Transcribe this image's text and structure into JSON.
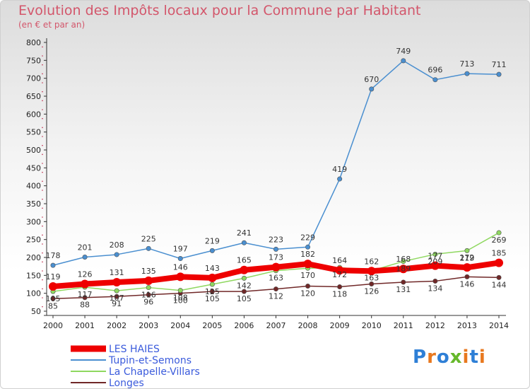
{
  "chart_data": {
    "type": "line",
    "title": "Evolution des Impôts locaux pour la Commune par Habitant",
    "subtitle": "(en € et par an)",
    "x": [
      2000,
      2001,
      2002,
      2003,
      2004,
      2005,
      2006,
      2007,
      2008,
      2009,
      2010,
      2011,
      2012,
      2013,
      2014
    ],
    "ylim": [
      50,
      800
    ],
    "yticks": [
      50,
      100,
      150,
      200,
      250,
      300,
      350,
      400,
      450,
      500,
      550,
      600,
      650,
      700,
      750,
      800
    ],
    "grid": false,
    "legend_position": "bottom-left",
    "series": [
      {
        "name": "LES HAIES",
        "color": "#ee0000",
        "values": [
          119,
          126,
          131,
          135,
          146,
          143,
          165,
          173,
          182,
          164,
          162,
          168,
          177,
          172,
          185
        ]
      },
      {
        "name": "Tupin-et-Semons",
        "color": "#4a8fd0",
        "values": [
          178,
          201,
          208,
          225,
          197,
          219,
          241,
          223,
          229,
          419,
          670,
          749,
          696,
          713,
          711
        ]
      },
      {
        "name": "La Chapelle-Villars",
        "color": "#8fd860",
        "values": [
          105,
          117,
          107,
          116,
          108,
          125,
          142,
          163,
          170,
          172,
          163,
          189,
          209,
          219,
          269
        ]
      },
      {
        "name": "Longes",
        "color": "#702828",
        "values": [
          85,
          88,
          91,
          96,
          100,
          105,
          105,
          112,
          120,
          118,
          126,
          131,
          134,
          146,
          144
        ]
      }
    ]
  },
  "logo": {
    "text": "Proxiti",
    "colors": [
      "#2e7fd6",
      "#e8781e",
      "#2e7fd6",
      "#66b82b",
      "#e8781e",
      "#2e7fd6",
      "#e8781e"
    ]
  }
}
